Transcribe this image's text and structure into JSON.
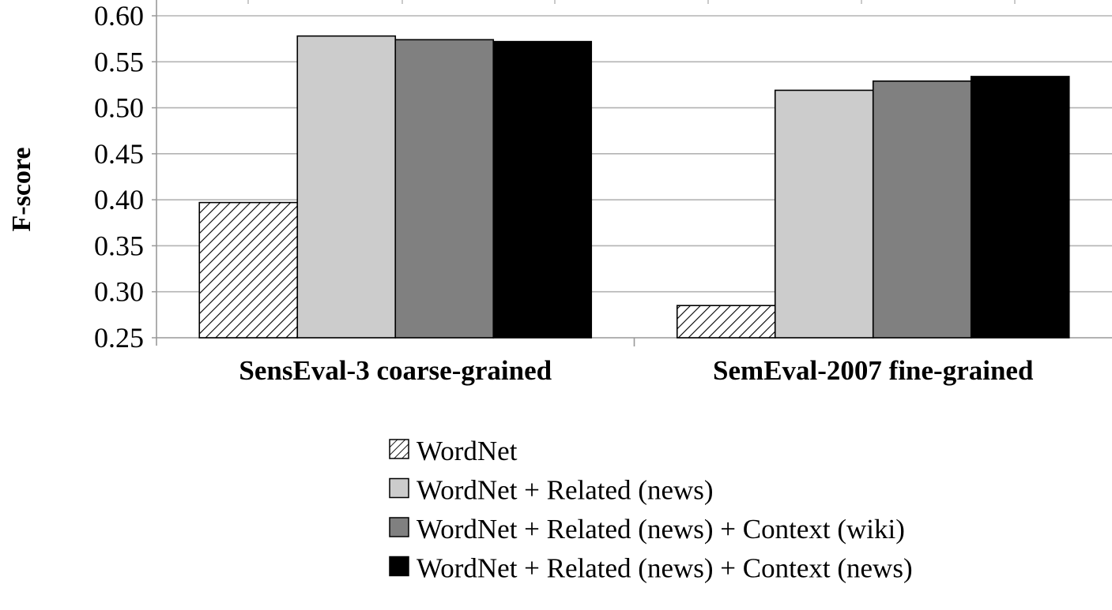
{
  "chart_data": {
    "type": "bar",
    "title": "",
    "xlabel": "",
    "ylabel": "F-score",
    "ylim": [
      0.25,
      0.6
    ],
    "yticks": [
      0.25,
      0.3,
      0.35,
      0.4,
      0.45,
      0.5,
      0.55,
      0.6
    ],
    "ytick_labels": [
      "0.25",
      "0.30",
      "0.35",
      "0.40",
      "0.45",
      "0.50",
      "0.55",
      "0.60"
    ],
    "grid": true,
    "legend_position": "bottom",
    "categories": [
      "SensEval-3 coarse-grained",
      "SemEval-2007 fine-grained"
    ],
    "series": [
      {
        "name": "WordNet",
        "values": [
          0.397,
          0.285
        ],
        "fill": "hatch",
        "color": "#ffffff"
      },
      {
        "name": "WordNet + Related (news)",
        "values": [
          0.578,
          0.519
        ],
        "fill": "solid",
        "color": "#cccccc"
      },
      {
        "name": "WordNet + Related (news) + Context (wiki)",
        "values": [
          0.574,
          0.529
        ],
        "fill": "solid",
        "color": "#808080"
      },
      {
        "name": "WordNet + Related (news) + Context (news)",
        "values": [
          0.572,
          0.534
        ],
        "fill": "solid",
        "color": "#000000"
      }
    ]
  }
}
